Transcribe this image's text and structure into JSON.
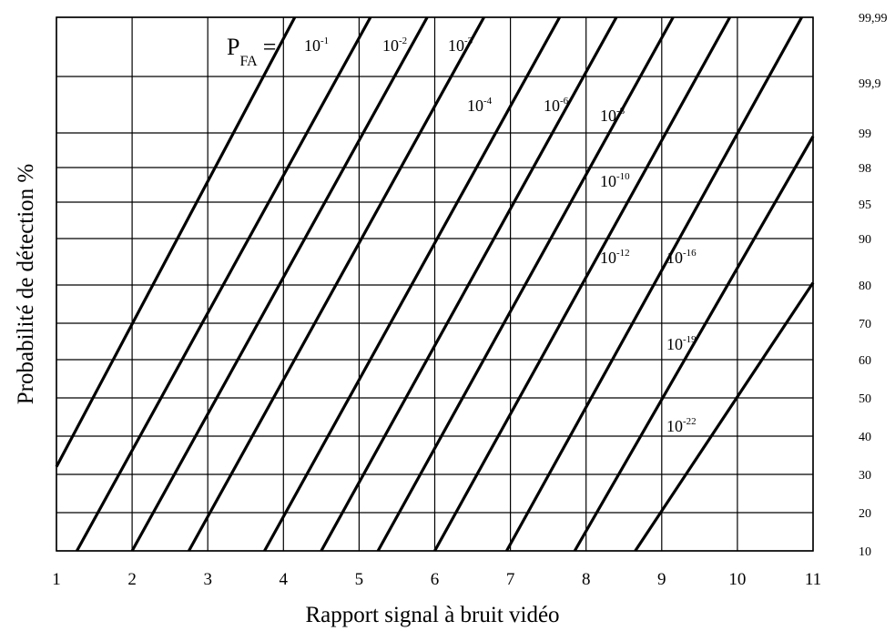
{
  "chart_data": {
    "type": "line",
    "title": "",
    "xlabel": "Rapport signal à bruit vidéo",
    "ylabel": "Probabilité de détection %",
    "y_scale": "probability (normal probability paper)",
    "grid": true,
    "xlim": [
      1,
      11
    ],
    "ylim": [
      10,
      99.99
    ],
    "x_ticks": [
      "1",
      "2",
      "3",
      "4",
      "5",
      "6",
      "7",
      "8",
      "9",
      "10",
      "11"
    ],
    "y_ticks": [
      "10",
      "20",
      "30",
      "40",
      "50",
      "60",
      "70",
      "80",
      "90",
      "95",
      "98",
      "99",
      "99,9",
      "99,99"
    ],
    "y_tick_values": [
      10,
      20,
      30,
      40,
      50,
      60,
      70,
      80,
      90,
      95,
      98,
      99,
      99.9,
      99.99
    ],
    "pfa_prefix": "P",
    "pfa_subscript": "FA",
    "pfa_equals": "=",
    "series": [
      {
        "name": "10-1",
        "base": "10",
        "exp": "-1",
        "points": [
          [
            1.0,
            32
          ],
          [
            4.15,
            99.99
          ]
        ]
      },
      {
        "name": "10-2",
        "base": "10",
        "exp": "-2",
        "points": [
          [
            1.27,
            10
          ],
          [
            5.15,
            99.99
          ]
        ]
      },
      {
        "name": "10-3",
        "base": "10",
        "exp": "-3",
        "points": [
          [
            2.0,
            10
          ],
          [
            5.9,
            99.99
          ]
        ]
      },
      {
        "name": "10-4",
        "base": "10",
        "exp": "-4",
        "points": [
          [
            2.75,
            10
          ],
          [
            6.65,
            99.99
          ]
        ]
      },
      {
        "name": "10-6",
        "base": "10",
        "exp": "-6",
        "points": [
          [
            3.75,
            10
          ],
          [
            7.65,
            99.99
          ]
        ]
      },
      {
        "name": "10-8",
        "base": "10",
        "exp": "-8",
        "points": [
          [
            4.5,
            10
          ],
          [
            8.4,
            99.99
          ]
        ]
      },
      {
        "name": "10-10",
        "base": "10",
        "exp": "-10",
        "points": [
          [
            5.25,
            10
          ],
          [
            9.15,
            99.99
          ]
        ]
      },
      {
        "name": "10-12",
        "base": "10",
        "exp": "-12",
        "points": [
          [
            6.0,
            10
          ],
          [
            9.9,
            99.99
          ]
        ]
      },
      {
        "name": "10-16",
        "base": "10",
        "exp": "-16",
        "points": [
          [
            6.95,
            10
          ],
          [
            10.85,
            99.99
          ]
        ]
      },
      {
        "name": "10-19",
        "base": "10",
        "exp": "-19",
        "points": [
          [
            7.85,
            10
          ],
          [
            11.0,
            98.9
          ]
        ]
      },
      {
        "name": "10-22",
        "base": "10",
        "exp": "-22",
        "points": [
          [
            8.65,
            10
          ],
          [
            11.0,
            80.5
          ]
        ]
      }
    ]
  }
}
